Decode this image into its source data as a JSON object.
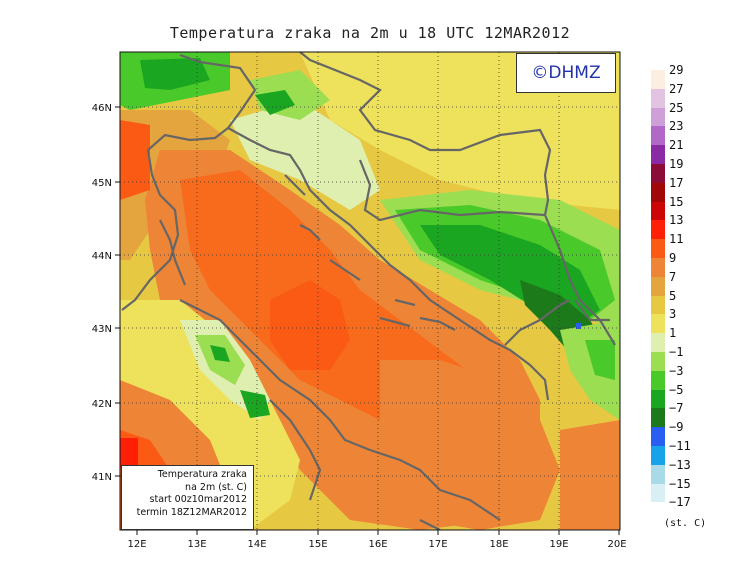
{
  "title": "Temperatura zraka na 2m u 18 UTC 12MAR2012",
  "logo": "©DHMZ",
  "infobox": {
    "line1": "Temperatura zraka",
    "line2": "na 2m (st. C)",
    "line3": "start 00z10mar2012",
    "line4": "termin 18Z12MAR2012"
  },
  "x_ticks": [
    "12E",
    "13E",
    "14E",
    "15E",
    "16E",
    "17E",
    "18E",
    "19E",
    "20E"
  ],
  "y_ticks": [
    "46N",
    "45N",
    "44N",
    "43N",
    "42N",
    "41N"
  ],
  "legend": {
    "unit": "(st. C)",
    "levels": [
      {
        "label": "29",
        "color": "#fdeee2"
      },
      {
        "label": "27",
        "color": "#e2c3e2"
      },
      {
        "label": "25",
        "color": "#cf9fd8"
      },
      {
        "label": "23",
        "color": "#b168c6"
      },
      {
        "label": "21",
        "color": "#8a2aa4"
      },
      {
        "label": "19",
        "color": "#8c0c38"
      },
      {
        "label": "17",
        "color": "#a00808"
      },
      {
        "label": "15",
        "color": "#cc0606"
      },
      {
        "label": "13",
        "color": "#ff1f06"
      },
      {
        "label": "11",
        "color": "#fb5a14"
      },
      {
        "label": "9",
        "color": "#ee8536"
      },
      {
        "label": "7",
        "color": "#e5a53e"
      },
      {
        "label": "5",
        "color": "#e7c842"
      },
      {
        "label": "3",
        "color": "#eee15c"
      },
      {
        "label": "1",
        "color": "#dfefb0"
      },
      {
        "label": "−1",
        "color": "#9bde52"
      },
      {
        "label": "−3",
        "color": "#4ac92a"
      },
      {
        "label": "−5",
        "color": "#1aa620"
      },
      {
        "label": "−7",
        "color": "#1c7a1a"
      },
      {
        "label": "−9",
        "color": "#2a5ef0"
      },
      {
        "label": "−11",
        "color": "#18a2e8"
      },
      {
        "label": "−13",
        "color": "#a8dae8"
      },
      {
        "label": "−15",
        "color": "#d8f0f4"
      },
      {
        "label": "−17",
        "color": "#ffffff"
      }
    ]
  }
}
